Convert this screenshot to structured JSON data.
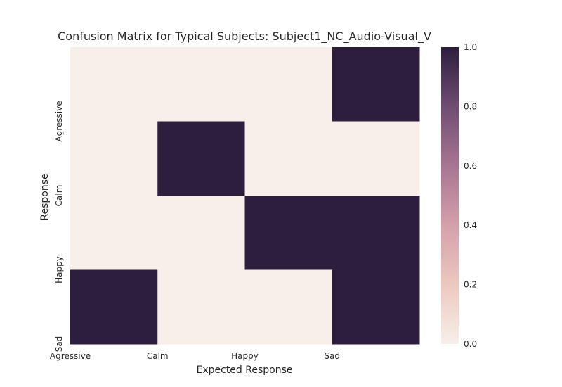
{
  "chart_data": {
    "type": "heatmap",
    "title": "Confusion Matrix for Typical Subjects: Subject1_NC_Audio-Visual_V",
    "xlabel": "Expected Response",
    "ylabel": "Response",
    "x_tick_labels": [
      "Agressive",
      "Calm",
      "Happy",
      "Sad"
    ],
    "y_tick_labels": [
      "Agressive",
      "Calm",
      "Happy",
      "Sad"
    ],
    "n_cols": 4,
    "n_rows": 4,
    "values": [
      [
        0,
        0,
        0,
        1
      ],
      [
        0,
        1,
        0,
        0
      ],
      [
        0,
        0,
        1,
        1
      ],
      [
        1,
        0,
        0,
        1
      ]
    ],
    "colorbar": {
      "ticks": [
        "0.0",
        "0.2",
        "0.4",
        "0.6",
        "0.8",
        "1.0"
      ],
      "min": 0,
      "max": 1
    },
    "colors": {
      "low": "#f8efea",
      "high": "#2d1e3e"
    }
  }
}
